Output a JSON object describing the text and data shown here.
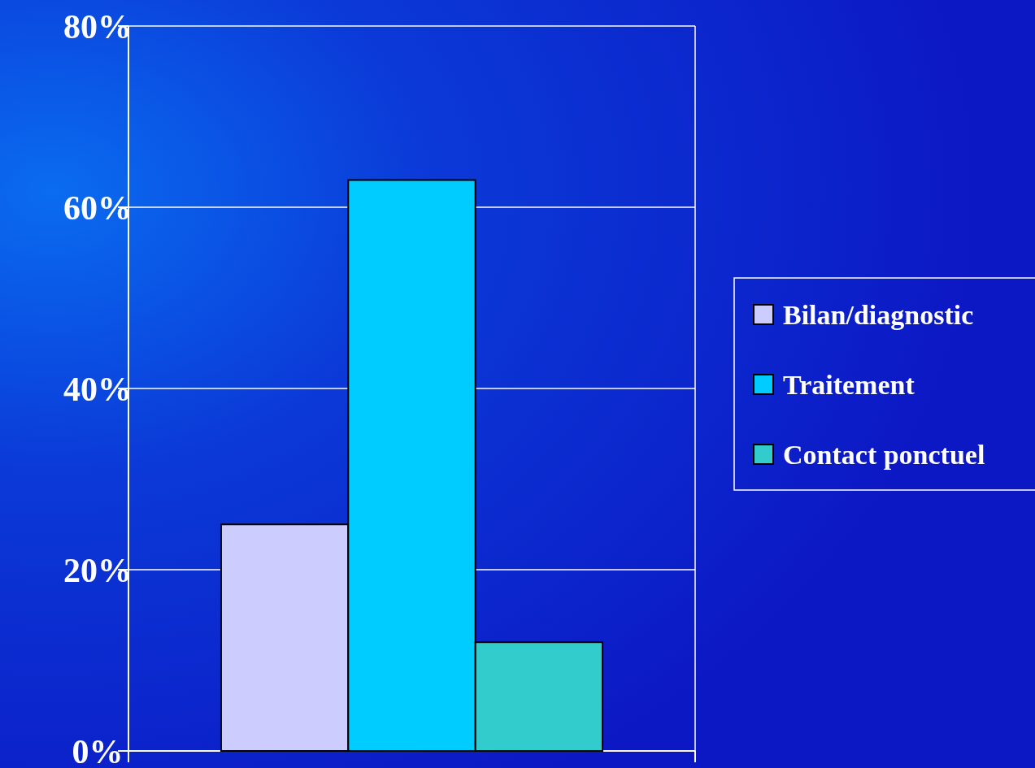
{
  "chart_data": {
    "type": "bar",
    "categories": [
      null
    ],
    "series": [
      {
        "name": "Bilan/diagnostic",
        "color": "#ccccff",
        "values": [
          25
        ]
      },
      {
        "name": "Traitement",
        "color": "#00ccff",
        "values": [
          63
        ]
      },
      {
        "name": "Contact ponctuel",
        "color": "#33cccc",
        "values": [
          12
        ]
      }
    ],
    "ylim": [
      0,
      80
    ],
    "yticks": [
      {
        "value": 0,
        "label": "0%"
      },
      {
        "value": 20,
        "label": "20%"
      },
      {
        "value": 40,
        "label": "40%"
      },
      {
        "value": 60,
        "label": "60%"
      },
      {
        "value": 80,
        "label": "80%"
      }
    ],
    "grid": "y",
    "legend": "right"
  }
}
